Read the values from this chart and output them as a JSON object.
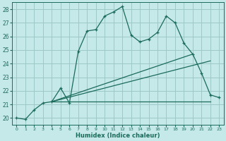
{
  "xlabel": "Humidex (Indice chaleur)",
  "bg_color": "#c5e8e8",
  "grid_color": "#9ec8c8",
  "line_color": "#1a6b5a",
  "xlim": [
    -0.5,
    23.5
  ],
  "ylim": [
    19.5,
    28.5
  ],
  "xticks": [
    0,
    1,
    2,
    3,
    4,
    5,
    6,
    7,
    8,
    9,
    10,
    11,
    12,
    13,
    14,
    15,
    16,
    17,
    18,
    19,
    20,
    21,
    22,
    23
  ],
  "yticks": [
    20,
    21,
    22,
    23,
    24,
    25,
    26,
    27,
    28
  ],
  "curve1_x": [
    0,
    1,
    2,
    3,
    4,
    5,
    6,
    7,
    8,
    9,
    10,
    11,
    12,
    13,
    14,
    15,
    16,
    17,
    18,
    19,
    20,
    21,
    22,
    23
  ],
  "curve1_y": [
    20.0,
    19.9,
    20.6,
    21.1,
    21.2,
    22.2,
    21.1,
    24.9,
    26.4,
    26.5,
    27.5,
    27.8,
    28.2,
    26.1,
    25.6,
    25.8,
    26.3,
    27.5,
    27.0,
    25.5,
    24.7,
    23.3,
    21.7,
    21.5
  ],
  "line2_x": [
    4,
    20
  ],
  "line2_y": [
    21.2,
    24.7
  ],
  "line3_x": [
    4,
    22
  ],
  "line3_y": [
    21.2,
    24.2
  ],
  "line4_x": [
    4,
    22
  ],
  "line4_y": [
    21.2,
    21.2
  ]
}
